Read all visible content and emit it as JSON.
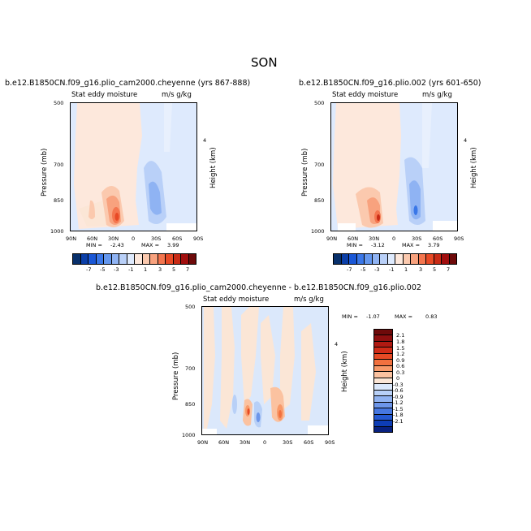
{
  "figure_title": "SON",
  "palette_full": [
    "#08306b",
    "#0b3fa8",
    "#1a57d6",
    "#3a77e8",
    "#6497ee",
    "#8fb3f3",
    "#b9d0f8",
    "#deeafd",
    "#fde8dc",
    "#fbc9ae",
    "#f8a27e",
    "#f4764f",
    "#e84a26",
    "#c92b16",
    "#a10e0e",
    "#6e0a0a"
  ],
  "palette_diff": [
    "#6e0a0a",
    "#8e0f0f",
    "#b11a12",
    "#d02c18",
    "#e64a25",
    "#f2713f",
    "#f89a6a",
    "#fbc2a0",
    "#fbe6d6",
    "#dbe8fb",
    "#b8d0f7",
    "#91b3f1",
    "#6d96ea",
    "#4677e1",
    "#2458d2",
    "#0d3db5",
    "#08217f"
  ],
  "chart_data": [
    {
      "type": "heatmap",
      "id": "panel1",
      "title": "b.e12.B1850CN.f09_g16.plio_cam2000.cheyenne (yrs 867-888)",
      "left_label": "Stat eddy moisture",
      "units": "m/s g/kg",
      "ylabel": "Pressure (mb)",
      "ylabel_right": "Height (km)",
      "right_tick": "4",
      "y_ticks": [
        "500",
        "700",
        "850",
        "1000"
      ],
      "x_ticks": [
        "90N",
        "60N",
        "30N",
        "0",
        "30S",
        "60S",
        "90S"
      ],
      "min_label": "MIN =",
      "min": "-2.43",
      "max_label": "MAX =",
      "max": "3.99",
      "colorbar_ticks": [
        "-7",
        "-5",
        "-3",
        "-1",
        "1",
        "3",
        "5",
        "7"
      ]
    },
    {
      "type": "heatmap",
      "id": "panel2",
      "title": "b.e12.B1850CN.f09_g16.plio.002 (yrs 601-650)",
      "left_label": "Stat eddy moisture",
      "units": "m/s g/kg",
      "ylabel": "Pressure (mb)",
      "ylabel_right": "Height (km)",
      "right_tick": "4",
      "y_ticks": [
        "500",
        "700",
        "850",
        "1000"
      ],
      "x_ticks": [
        "90N",
        "60N",
        "30N",
        "0",
        "30S",
        "60S",
        "90S"
      ],
      "min_label": "MIN =",
      "min": "-3.12",
      "max_label": "MAX =",
      "max": "3.79",
      "colorbar_ticks": [
        "-7",
        "-5",
        "-3",
        "-1",
        "1",
        "3",
        "5",
        "7"
      ]
    },
    {
      "type": "heatmap",
      "id": "panel3",
      "title": "b.e12.B1850CN.f09_g16.plio_cam2000.cheyenne - b.e12.B1850CN.f09_g16.plio.002",
      "left_label": "Stat eddy moisture",
      "units": "m/s g/kg",
      "ylabel": "Pressure (mb)",
      "ylabel_right": "Height (km)",
      "right_tick": "4",
      "y_ticks": [
        "500",
        "700",
        "850",
        "1000"
      ],
      "x_ticks": [
        "90N",
        "60N",
        "30N",
        "0",
        "30S",
        "60S",
        "90S"
      ],
      "min_label": "MIN =",
      "min": "-1.07",
      "max_label": "MAX =",
      "max": "0.83",
      "colorbar_ticks": [
        "2.1",
        "1.8",
        "1.5",
        "1.2",
        "0.9",
        "0.6",
        "0.3",
        "0",
        "-0.3",
        "-0.6",
        "-0.9",
        "-1.2",
        "-1.5",
        "-1.8",
        "-2.1"
      ]
    }
  ]
}
